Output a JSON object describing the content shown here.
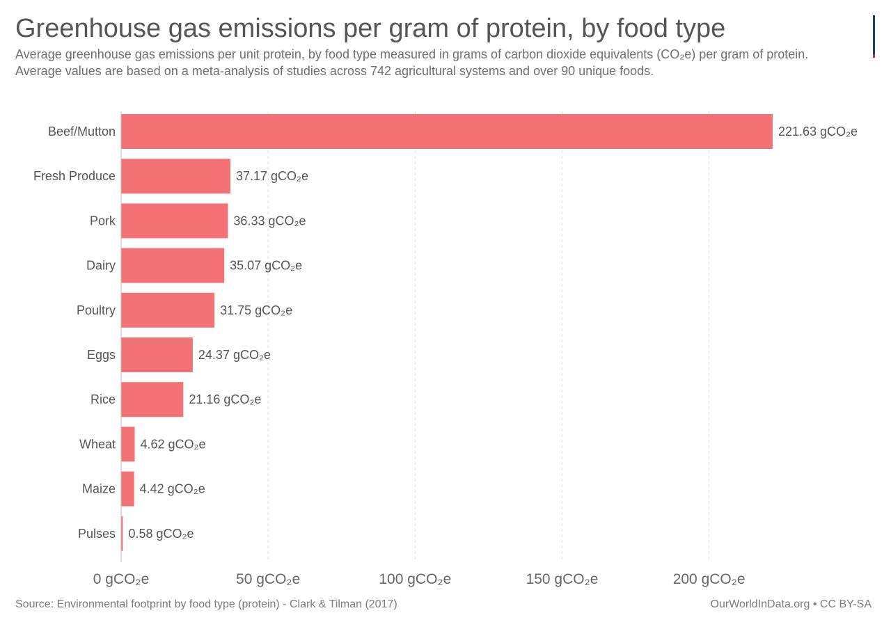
{
  "header": {
    "title": "Greenhouse gas emissions per gram of protein, by food type",
    "subtitle": "Average greenhouse gas emissions per unit protein, by food type measured in grams of carbon dioxide equivalents (CO₂e) per gram of protein. Average values are based on a meta-analysis of studies across 742 agricultural systems and over 90 unique foods."
  },
  "footer": {
    "source": "Source: Environmental footprint by food type (protein) - Clark & Tilman (2017)",
    "credit": "OurWorldInData.org • CC BY-SA"
  },
  "colors": {
    "bar": "#f37275",
    "grid": "#dddddd",
    "axis": "#bbbbbb",
    "text": "#555555"
  },
  "chart_data": {
    "type": "bar",
    "orientation": "horizontal",
    "unit": "gCO₂e",
    "categories": [
      "Beef/Mutton",
      "Fresh Produce",
      "Pork",
      "Dairy",
      "Poultry",
      "Eggs",
      "Rice",
      "Wheat",
      "Maize",
      "Pulses"
    ],
    "values": [
      221.63,
      37.17,
      36.33,
      35.07,
      31.75,
      24.37,
      21.16,
      4.62,
      4.42,
      0.58
    ],
    "value_labels": [
      "221.63 gCO₂e",
      "37.17 gCO₂e",
      "36.33 gCO₂e",
      "35.07 gCO₂e",
      "31.75 gCO₂e",
      "24.37 gCO₂e",
      "21.16 gCO₂e",
      "4.62 gCO₂e",
      "4.42 gCO₂e",
      "0.58 gCO₂e"
    ],
    "x_ticks": [
      0,
      50,
      100,
      150,
      200
    ],
    "x_tick_labels": [
      "0 gCO₂e",
      "50 gCO₂e",
      "100 gCO₂e",
      "150 gCO₂e",
      "200 gCO₂e"
    ],
    "xlim": [
      0,
      221.63
    ],
    "grid": true
  }
}
